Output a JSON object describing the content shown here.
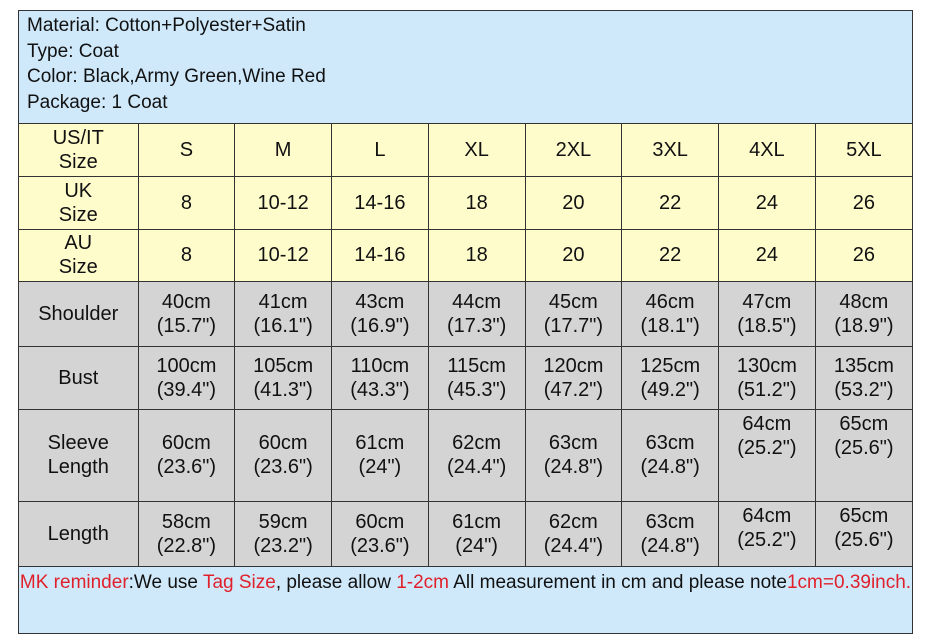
{
  "info": [
    "Material: Cotton+Polyester+Satin",
    "Type: Coat",
    "Color: Black,Army Green,Wine Red",
    "Package: 1 Coat"
  ],
  "rows": [
    {
      "label": "US/IT Size",
      "kind": "size",
      "cells": [
        "S",
        "M",
        "L",
        "XL",
        "2XL",
        "3XL",
        "4XL",
        "5XL"
      ]
    },
    {
      "label": "UK Size",
      "kind": "size",
      "cells": [
        "8",
        "10-12",
        "14-16",
        "18",
        "20",
        "22",
        "24",
        "26"
      ]
    },
    {
      "label": "AU Size",
      "kind": "size",
      "cells": [
        "8",
        "10-12",
        "14-16",
        "18",
        "20",
        "22",
        "24",
        "26"
      ]
    },
    {
      "label": "Shoulder",
      "kind": "meas",
      "cells": [
        "40cm (15.7\")",
        "41cm (16.1\")",
        "43cm (16.9\")",
        "44cm (17.3\")",
        "45cm (17.7\")",
        "46cm (18.1\")",
        "47cm (18.5\")",
        "48cm (18.9\")"
      ]
    },
    {
      "label": "Bust",
      "kind": "meas",
      "cells": [
        "100cm (39.4\")",
        "105cm (41.3\")",
        "110cm (43.3\")",
        "115cm (45.3\")",
        "120cm (47.2\")",
        "125cm (49.2\")",
        "130cm (51.2\")",
        "135cm (53.2\")"
      ]
    },
    {
      "label": "Sleeve Length",
      "kind": "meas",
      "cells": [
        "60cm (23.6\")",
        "60cm (23.6\")",
        "61cm (24\")",
        "62cm (24.4\")",
        "63cm (24.8\")",
        "63cm (24.8\")",
        "64cm (25.2\")",
        "65cm (25.6\")"
      ]
    },
    {
      "label": "Length",
      "kind": "meas",
      "cells": [
        "58cm (22.8\")",
        "59cm (23.2\")",
        "60cm (23.6\")",
        "61cm (24\")",
        "62cm (24.4\")",
        "63cm (24.8\")",
        "64cm (25.2\")",
        "65cm (25.6\")"
      ]
    }
  ],
  "footer": {
    "p1": "MK reminder",
    "p2": ":We use ",
    "p3": "Tag Size",
    "p4": ", please allow ",
    "p5": "1-2cm",
    "p6": " All measurement in cm and please note",
    "p7": "1cm=0.39inch."
  },
  "colors": {
    "info_bg": "#cfe9fb",
    "size_bg": "#fffccc",
    "measure_bg": "#d4d4d4",
    "highlight": "#e0202a"
  }
}
